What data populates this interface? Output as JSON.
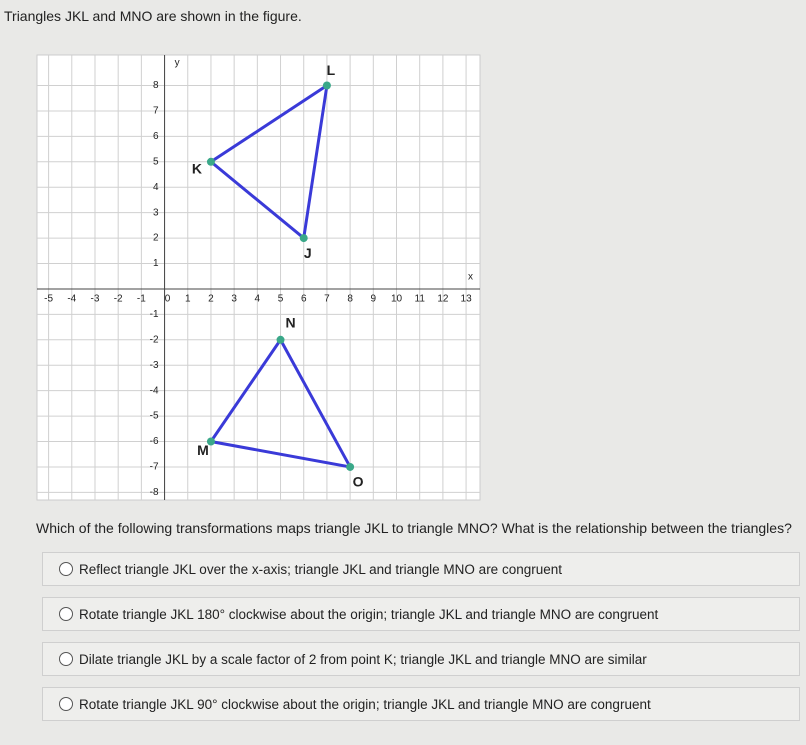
{
  "header": {
    "text": "Triangles JKL and MNO are shown in the figure."
  },
  "graph": {
    "x_label": "x",
    "y_label": "y",
    "xlim": [
      -5.5,
      13.6
    ],
    "ylim": [
      -8.3,
      9.2
    ],
    "xticks": [
      -5,
      -4,
      -3,
      -2,
      -1,
      0,
      1,
      2,
      3,
      4,
      5,
      6,
      7,
      8,
      9,
      10,
      11,
      12,
      13
    ],
    "yticks": [
      -8,
      -7,
      -6,
      -5,
      -4,
      -3,
      -2,
      -1,
      1,
      2,
      3,
      4,
      5,
      6,
      7,
      8
    ],
    "line_color": "#3a3ad8",
    "point_color": "#3aa889",
    "triangles": [
      {
        "vertices": [
          {
            "label": "J",
            "x": 6,
            "y": 2
          },
          {
            "label": "K",
            "x": 2,
            "y": 5
          },
          {
            "label": "L",
            "x": 7,
            "y": 8
          }
        ]
      },
      {
        "vertices": [
          {
            "label": "M",
            "x": 2,
            "y": -6
          },
          {
            "label": "N",
            "x": 5,
            "y": -2
          },
          {
            "label": "O",
            "x": 8,
            "y": -7
          }
        ]
      }
    ]
  },
  "question": {
    "text": "Which of the following transformations maps triangle JKL to triangle MNO? What is the relationship between the triangles?"
  },
  "options": [
    "Reflect triangle JKL over the x-axis; triangle JKL and triangle MNO are congruent",
    "Rotate triangle JKL 180° clockwise about the origin; triangle JKL and triangle MNO are congruent",
    "Dilate triangle JKL by a scale factor of 2 from point K; triangle JKL and triangle MNO are similar",
    "Rotate triangle JKL 90° clockwise about the origin; triangle JKL and triangle MNO are congruent"
  ]
}
